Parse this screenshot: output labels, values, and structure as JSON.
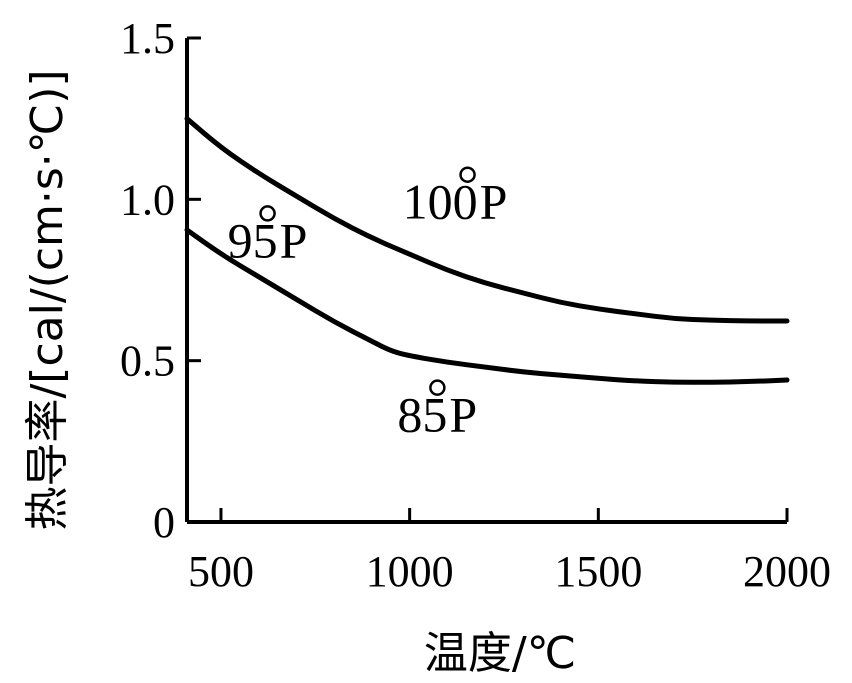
{
  "chart_data": {
    "type": "line",
    "title": "",
    "xlabel": "温度/℃",
    "ylabel": "热导率/[cal/(cm·s·℃)]",
    "xlim": [
      410,
      2000
    ],
    "ylim": [
      0,
      1.5
    ],
    "x_ticks": [
      500,
      1000,
      1500,
      2000
    ],
    "x_tick_labels": [
      "500",
      "1000",
      "1500",
      "2000"
    ],
    "y_ticks": [
      0,
      0.5,
      1.0,
      1.5
    ],
    "y_tick_labels": [
      "0",
      "0.5",
      "1.0",
      "1.5"
    ],
    "grid": false,
    "series": [
      {
        "name": "100P",
        "label_text": "100",
        "label_suffix": "P",
        "label_at": [
          1180,
          0.94
        ],
        "x": [
          410,
          500,
          600,
          700,
          800,
          900,
          1000,
          1100,
          1200,
          1300,
          1400,
          1500,
          1600,
          1700,
          1800,
          1900,
          2000
        ],
        "y": [
          1.25,
          1.16,
          1.08,
          1.01,
          0.94,
          0.88,
          0.83,
          0.78,
          0.74,
          0.71,
          0.68,
          0.66,
          0.645,
          0.63,
          0.625,
          0.623,
          0.623
        ]
      },
      {
        "name": "95P",
        "label_text": "95",
        "label_suffix": "P",
        "label_at": [
          650,
          0.82
        ],
        "x": [
          410,
          500,
          600,
          700,
          800,
          900,
          950,
          1000,
          1100,
          1200,
          1300,
          1400,
          1500,
          1600,
          1700,
          1800,
          1900,
          2000
        ],
        "y": [
          0.905,
          0.83,
          0.76,
          0.69,
          0.62,
          0.56,
          0.53,
          0.515,
          0.495,
          0.48,
          0.465,
          0.455,
          0.445,
          0.437,
          0.433,
          0.433,
          0.435,
          0.44
        ]
      },
      {
        "name": "85P",
        "label_text": "85",
        "label_suffix": "P",
        "label_at": [
          1100,
          0.28
        ],
        "x": [],
        "y": []
      }
    ]
  }
}
